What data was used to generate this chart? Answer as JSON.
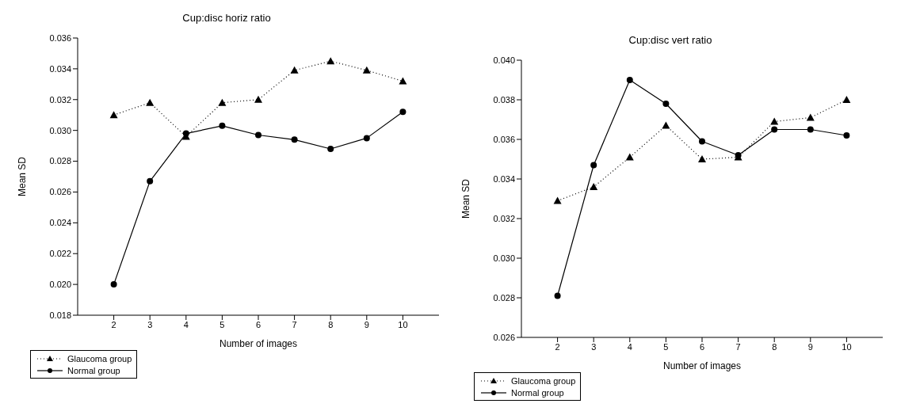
{
  "chart_data": [
    {
      "type": "line",
      "title": "Cup:disc horiz ratio",
      "xlabel": "Number of images",
      "ylabel": "Mean SD",
      "x": [
        2,
        3,
        4,
        5,
        6,
        7,
        8,
        9,
        10
      ],
      "xlim": [
        1,
        11
      ],
      "xticks": [
        2,
        3,
        4,
        5,
        6,
        7,
        8,
        9,
        10
      ],
      "ylim": [
        0.018,
        0.036
      ],
      "yticks": [
        0.018,
        {
          "value": 0.02,
          "label": "0.020"
        },
        0.022,
        0.024,
        0.026,
        0.028,
        {
          "value": 0.03,
          "label": "0.030"
        },
        0.032,
        0.034,
        0.036
      ],
      "legend": "bottom left",
      "grid": false,
      "series": [
        {
          "name": "Glaucoma group",
          "color": "#000000",
          "marker": "triangle",
          "line_style": "dotted",
          "values": [
            0.031,
            0.0318,
            0.0296,
            0.0318,
            0.032,
            0.0339,
            0.0345,
            0.0339,
            0.0332
          ]
        },
        {
          "name": "Normal group",
          "color": "#000000",
          "marker": "circle",
          "line_style": "solid",
          "values": [
            0.02,
            0.0267,
            0.0298,
            0.0303,
            0.0297,
            0.0294,
            0.0288,
            0.0295,
            0.0312
          ]
        }
      ]
    },
    {
      "type": "line",
      "title": "Cup:disc vert ratio",
      "xlabel": "Number of images",
      "ylabel": "Mean SD",
      "x": [
        2,
        3,
        4,
        5,
        6,
        7,
        8,
        9,
        10
      ],
      "xlim": [
        1,
        11
      ],
      "xticks": [
        2,
        3,
        4,
        5,
        6,
        7,
        8,
        9,
        10
      ],
      "ylim": [
        0.026,
        0.04
      ],
      "yticks": [
        0.026,
        0.028,
        {
          "value": 0.03,
          "label": "0.030"
        },
        0.032,
        0.034,
        0.036,
        0.038,
        {
          "value": 0.04,
          "label": "0.040"
        }
      ],
      "legend": "bottom left",
      "grid": false,
      "series": [
        {
          "name": "Glaucoma group",
          "color": "#000000",
          "marker": "triangle",
          "line_style": "dotted",
          "values": [
            0.0329,
            0.0336,
            0.0351,
            0.0367,
            0.035,
            0.0351,
            0.0369,
            0.0371,
            0.038
          ]
        },
        {
          "name": "Normal group",
          "color": "#000000",
          "marker": "circle",
          "line_style": "solid",
          "values": [
            0.0281,
            0.0347,
            0.039,
            0.0378,
            0.0359,
            0.0352,
            0.0365,
            0.0365,
            0.0362
          ]
        }
      ]
    }
  ]
}
